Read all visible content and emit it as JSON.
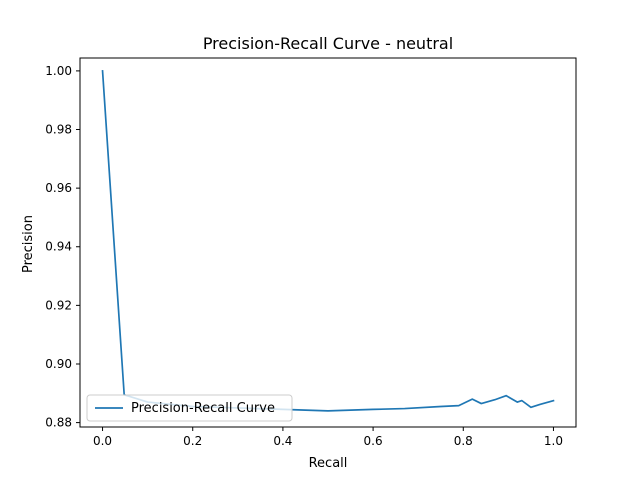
{
  "chart_data": {
    "type": "line",
    "title": "Precision-Recall Curve - neutral",
    "xlabel": "Recall",
    "ylabel": "Precision",
    "xlim": [
      -0.05,
      1.05
    ],
    "ylim": [
      0.8785,
      1.0044
    ],
    "xticks": [
      0.0,
      0.2,
      0.4,
      0.6,
      0.8,
      1.0
    ],
    "xtick_labels": [
      "0.0",
      "0.2",
      "0.4",
      "0.6",
      "0.8",
      "1.0"
    ],
    "yticks": [
      0.88,
      0.9,
      0.92,
      0.94,
      0.96,
      0.98,
      1.0
    ],
    "ytick_labels": [
      "0.88",
      "0.90",
      "0.92",
      "0.94",
      "0.96",
      "0.98",
      "1.00"
    ],
    "grid": false,
    "legend_position": "lower-left",
    "series": [
      {
        "name": "Precision-Recall Curve",
        "color": "#1f77b4",
        "x": [
          0.0,
          0.048,
          0.1,
          0.2,
          0.3,
          0.4,
          0.5,
          0.6,
          0.67,
          0.75,
          0.79,
          0.82,
          0.84,
          0.87,
          0.895,
          0.92,
          0.93,
          0.95,
          0.97,
          1.0
        ],
        "y": [
          1.0,
          0.8895,
          0.887,
          0.8855,
          0.885,
          0.8845,
          0.884,
          0.8845,
          0.8848,
          0.8855,
          0.8858,
          0.888,
          0.8865,
          0.8878,
          0.8892,
          0.887,
          0.8875,
          0.8852,
          0.8862,
          0.8875
        ]
      }
    ]
  }
}
